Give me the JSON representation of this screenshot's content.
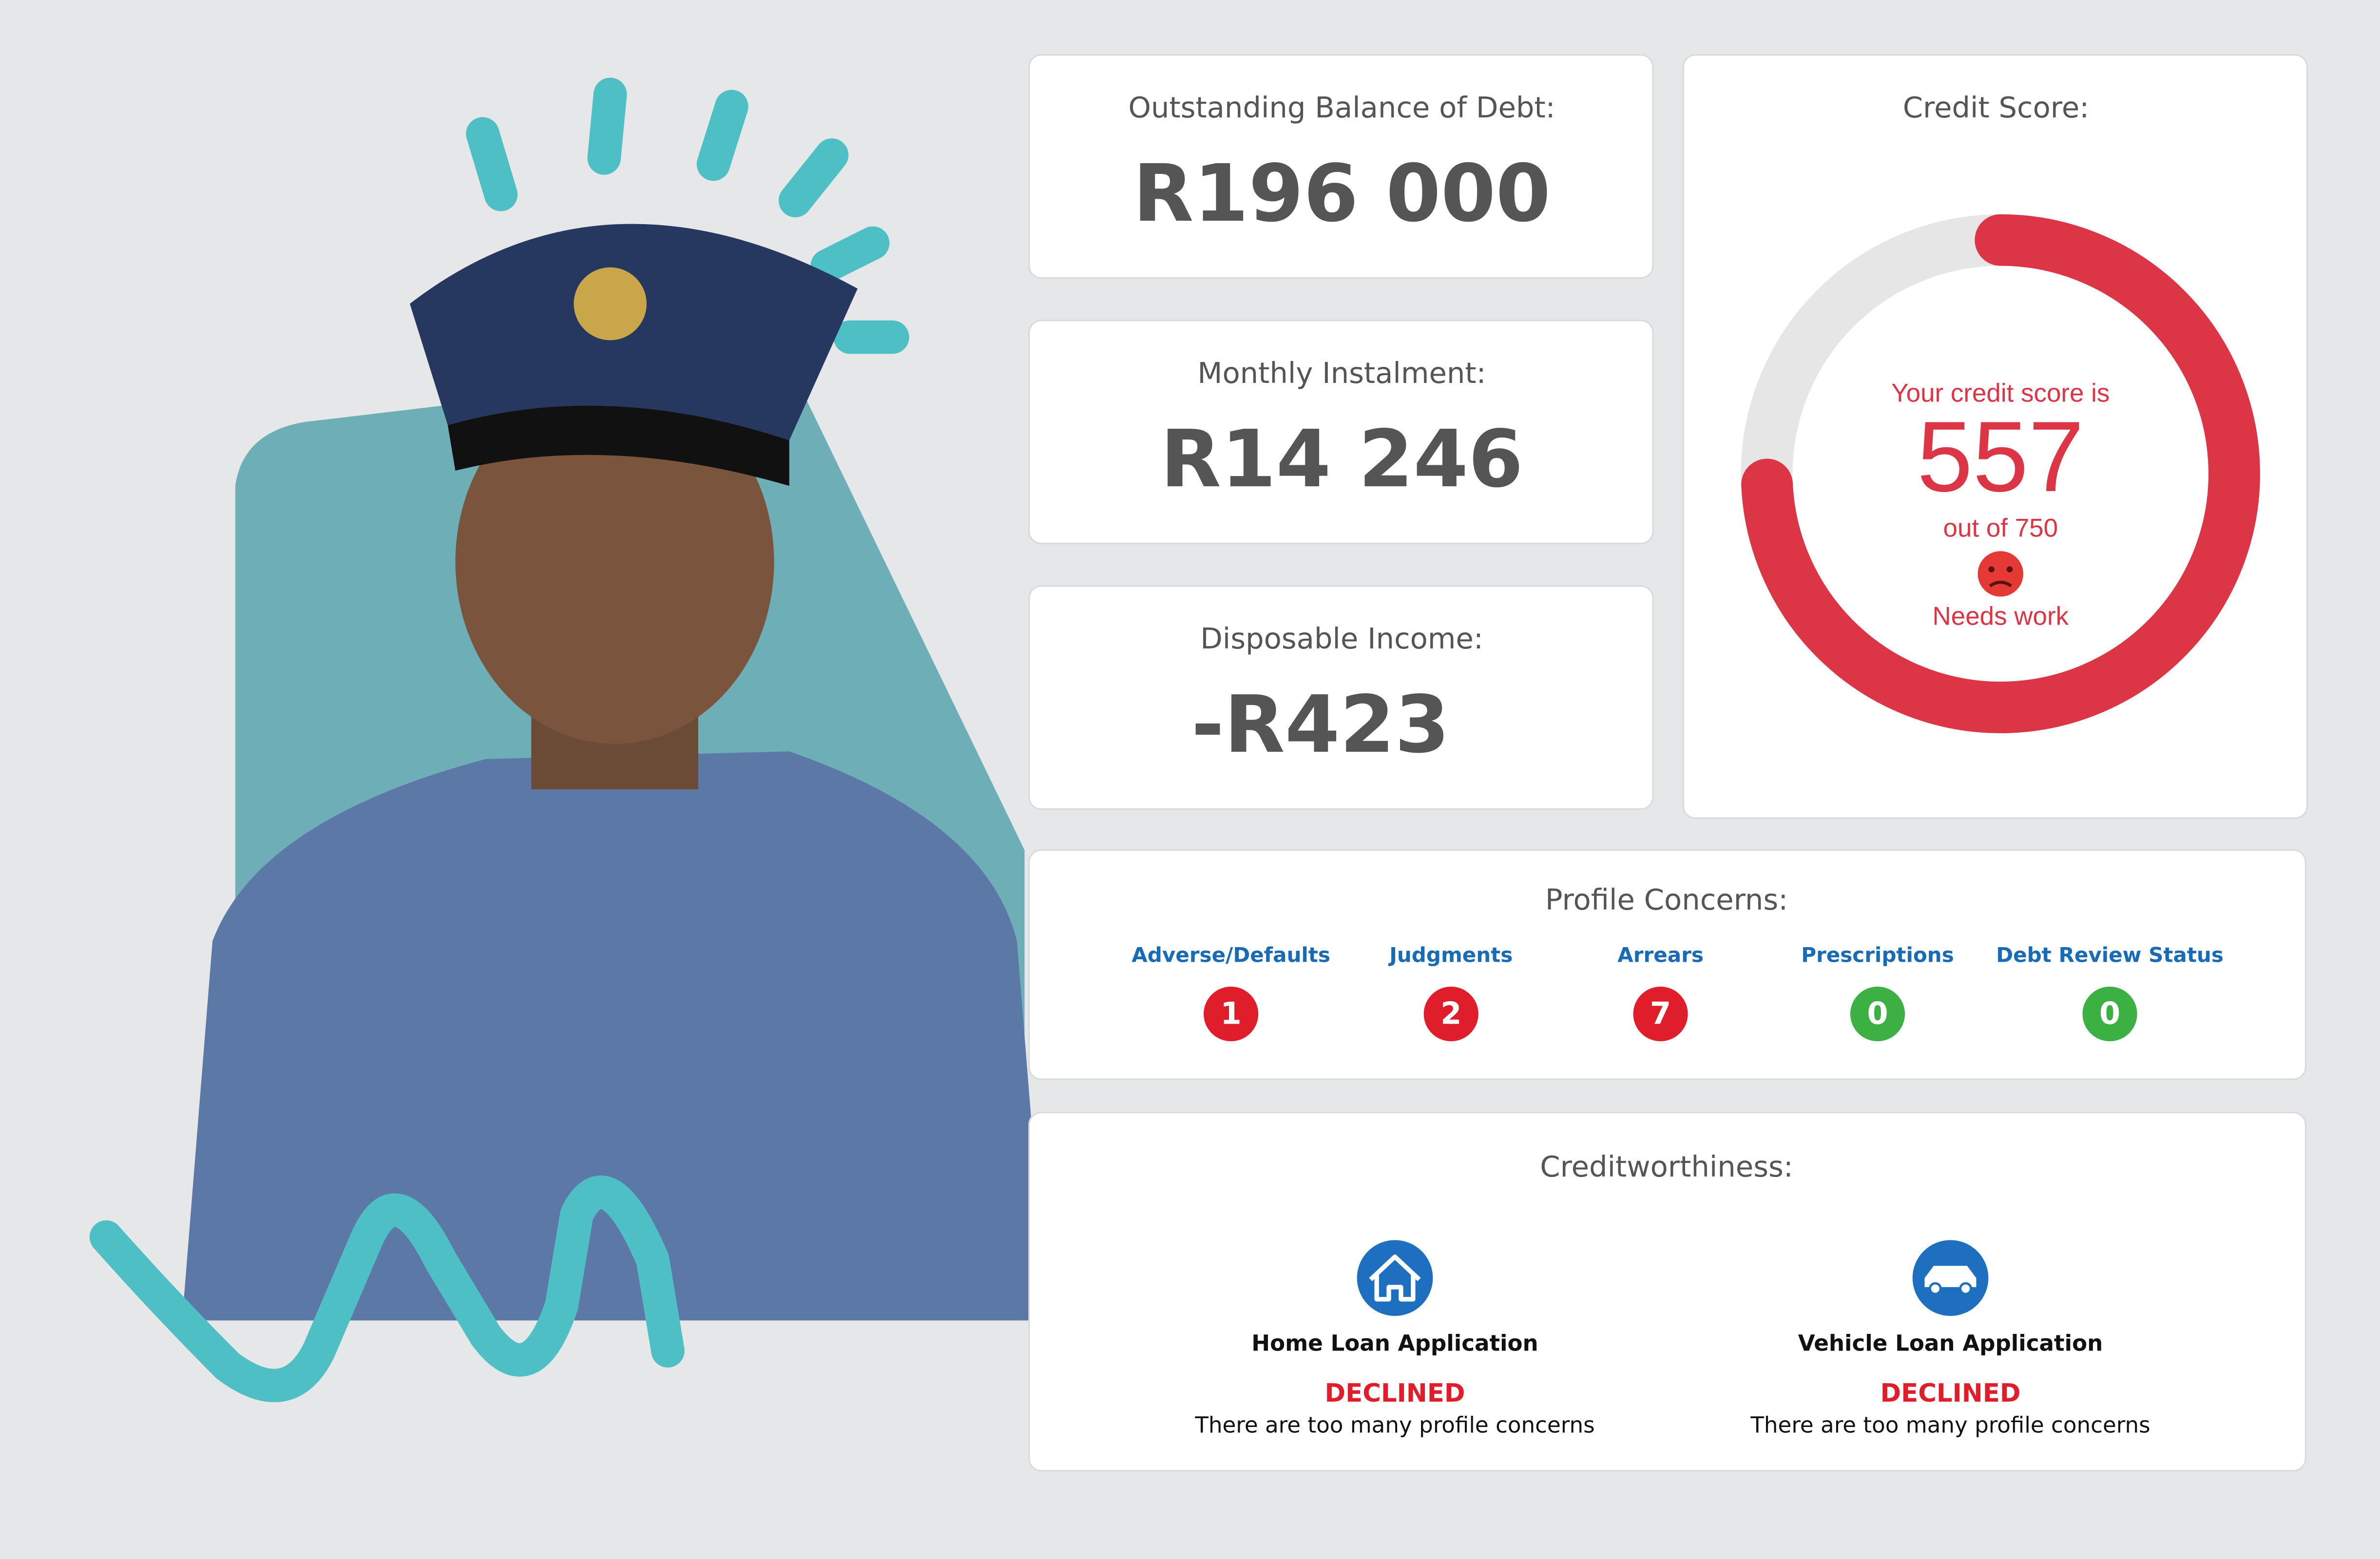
{
  "cards": [
    {
      "label": "Outstanding Balance of Debt:",
      "value": "R196 000"
    },
    {
      "label": "Monthly Instalment:",
      "value": "R14 246"
    },
    {
      "label": "Disposable Income:",
      "value": "-R423"
    }
  ],
  "credit_score": {
    "title": "Credit Score:",
    "intro": "Your credit score is",
    "score": 557,
    "max": 750,
    "max_label": "out of 750",
    "rating": "Needs work"
  },
  "profile_concerns": {
    "title": "Profile Concerns:",
    "items": [
      {
        "label": "Adverse/Defaults",
        "count": 1
      },
      {
        "label": "Judgments",
        "count": 2
      },
      {
        "label": "Arrears",
        "count": 7
      },
      {
        "label": "Prescriptions",
        "count": 0
      },
      {
        "label": "Debt Review Status",
        "count": 0
      }
    ]
  },
  "creditworthiness": {
    "title": "Creditworthiness:",
    "applications": [
      {
        "label": "Home Loan Application",
        "status": "DECLINED",
        "reason": "There are too many profile concerns"
      },
      {
        "label": "Vehicle Loan Application",
        "status": "DECLINED",
        "reason": "There are too many profile concerns"
      }
    ]
  }
}
